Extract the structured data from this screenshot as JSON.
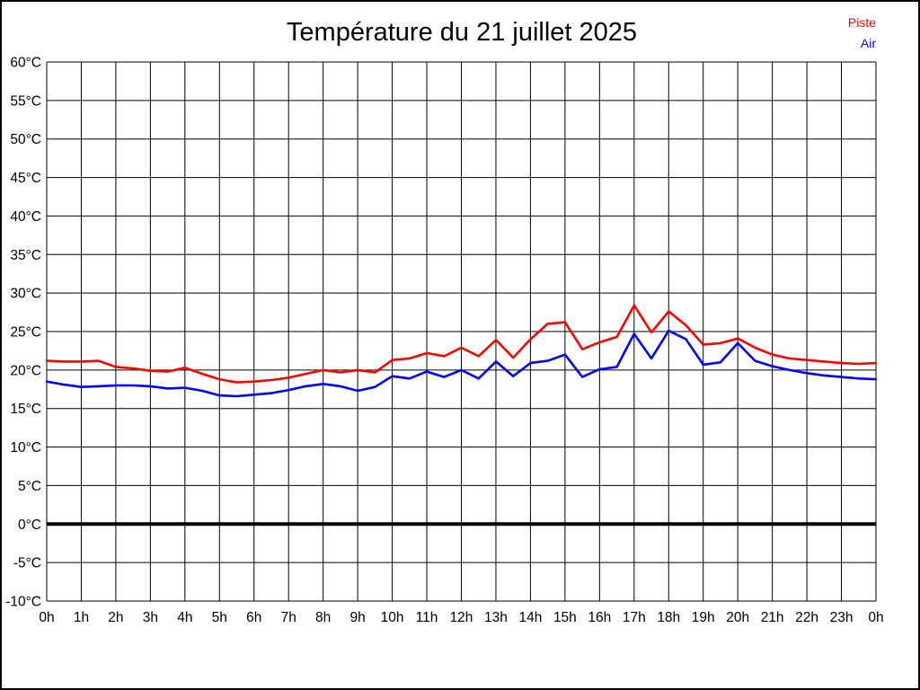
{
  "title": "Température du 21 juillet 2025",
  "legend": {
    "items": [
      {
        "label": "Piste",
        "color": "#ff0000"
      },
      {
        "label": "Air",
        "color": "#0000ff"
      }
    ]
  },
  "chart_data": {
    "type": "line",
    "title": "Température du 21 juillet 2025",
    "xlabel": "",
    "ylabel": "",
    "x_unit": "hours",
    "xlim": [
      0,
      24
    ],
    "ylim": [
      -10,
      60
    ],
    "grid": true,
    "legend_position": "top-right",
    "zero_line_value": 0,
    "grid_color": "#000000",
    "zero_line_width": 4,
    "x_ticks": [
      0,
      1,
      2,
      3,
      4,
      5,
      6,
      7,
      8,
      9,
      10,
      11,
      12,
      13,
      14,
      15,
      16,
      17,
      18,
      19,
      20,
      21,
      22,
      23,
      24
    ],
    "x_tick_labels": [
      "0h",
      "1h",
      "2h",
      "3h",
      "4h",
      "5h",
      "6h",
      "7h",
      "8h",
      "9h",
      "10h",
      "11h",
      "12h",
      "13h",
      "14h",
      "15h",
      "16h",
      "17h",
      "18h",
      "19h",
      "20h",
      "21h",
      "22h",
      "23h",
      "0h"
    ],
    "y_ticks": [
      60,
      55,
      50,
      45,
      40,
      35,
      30,
      25,
      20,
      15,
      10,
      5,
      0,
      -5,
      -10
    ],
    "y_tick_labels": [
      "60°C",
      "55°C",
      "50°C",
      "45°C",
      "40°C",
      "35°C",
      "30°C",
      "25°C",
      "20°C",
      "15°C",
      "10°C",
      "5°C",
      "0°C",
      "-5°C",
      "-10°C"
    ],
    "x": [
      0,
      0.5,
      1,
      1.5,
      2,
      2.5,
      3,
      3.5,
      4,
      4.5,
      5,
      5.5,
      6,
      6.5,
      7,
      7.5,
      8,
      8.5,
      9,
      9.5,
      10,
      10.5,
      11,
      11.5,
      12,
      12.5,
      13,
      13.5,
      14,
      14.5,
      15,
      15.5,
      16,
      16.5,
      17,
      17.5,
      18,
      18.5,
      19,
      19.5,
      20,
      20.5,
      21,
      21.5,
      22,
      22.5,
      23,
      23.5,
      24
    ],
    "series": [
      {
        "name": "Piste",
        "color": "#ff0000",
        "values": [
          21.2,
          21.1,
          21.1,
          21.2,
          20.4,
          20.2,
          19.9,
          19.8,
          20.3,
          19.5,
          18.8,
          18.4,
          18.5,
          18.7,
          19.0,
          19.5,
          20.0,
          19.7,
          20.0,
          19.7,
          21.3,
          21.5,
          22.2,
          21.8,
          22.9,
          21.8,
          23.9,
          21.6,
          24.0,
          26.0,
          26.2,
          22.7,
          23.6,
          24.3,
          28.4,
          24.9,
          27.6,
          25.8,
          23.3,
          23.5,
          24.1,
          22.9,
          22.0,
          21.5,
          21.3,
          21.1,
          20.9,
          20.8,
          20.9
        ]
      },
      {
        "name": "Air",
        "color": "#0000ff",
        "values": [
          18.5,
          18.1,
          17.8,
          17.9,
          18.0,
          18.0,
          17.9,
          17.6,
          17.7,
          17.3,
          16.7,
          16.6,
          16.8,
          17.0,
          17.4,
          17.9,
          18.2,
          17.9,
          17.3,
          17.8,
          19.2,
          18.9,
          19.8,
          19.1,
          20.0,
          18.9,
          21.1,
          19.2,
          20.9,
          21.2,
          22.0,
          19.1,
          20.1,
          20.4,
          24.7,
          21.5,
          25.1,
          24.0,
          20.7,
          21.0,
          23.5,
          21.2,
          20.5,
          20.0,
          19.6,
          19.3,
          19.1,
          18.9,
          18.8
        ]
      }
    ]
  }
}
